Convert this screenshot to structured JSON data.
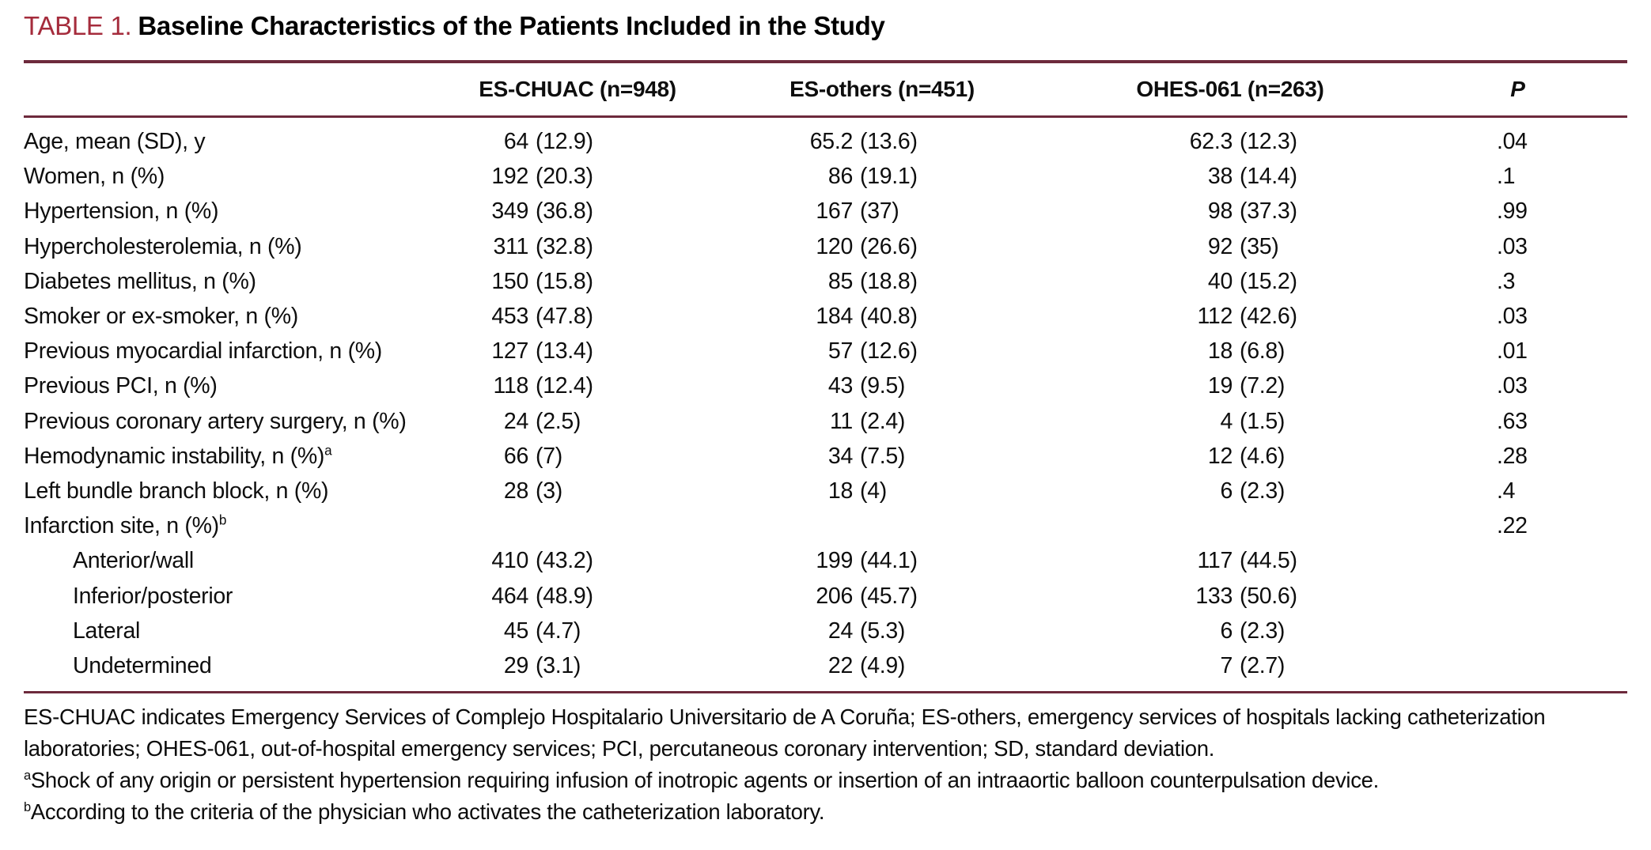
{
  "title": {
    "label": "TABLE 1.",
    "text": "Baseline Characteristics of the Patients Included in the Study"
  },
  "table": {
    "columns": [
      {
        "label": ""
      },
      {
        "label": "ES-CHUAC (n=948)"
      },
      {
        "label": "ES-others (n=451)"
      },
      {
        "label": "OHES-061 (n=263)"
      },
      {
        "label": "P",
        "italic": true
      }
    ],
    "rows": [
      {
        "label": "Age, mean (SD), y",
        "sup": "",
        "indent": false,
        "values": [
          "64 (12.9)",
          "65.2 (13.6)",
          "62.3 (12.3)"
        ],
        "p": ".04"
      },
      {
        "label": "Women, n (%)",
        "sup": "",
        "indent": false,
        "values": [
          "192 (20.3)",
          "86 (19.1)",
          "38 (14.4)"
        ],
        "p": ".1"
      },
      {
        "label": "Hypertension, n (%)",
        "sup": "",
        "indent": false,
        "values": [
          "349 (36.8)",
          "167 (37)",
          "98 (37.3)"
        ],
        "p": ".99"
      },
      {
        "label": "Hypercholesterolemia, n (%)",
        "sup": "",
        "indent": false,
        "values": [
          "311 (32.8)",
          "120 (26.6)",
          "92 (35)"
        ],
        "p": ".03"
      },
      {
        "label": "Diabetes mellitus, n (%)",
        "sup": "",
        "indent": false,
        "values": [
          "150 (15.8)",
          "85 (18.8)",
          "40 (15.2)"
        ],
        "p": ".3"
      },
      {
        "label": "Smoker or ex-smoker, n (%)",
        "sup": "",
        "indent": false,
        "values": [
          "453 (47.8)",
          "184 (40.8)",
          "112 (42.6)"
        ],
        "p": ".03"
      },
      {
        "label": "Previous myocardial infarction, n (%)",
        "sup": "",
        "indent": false,
        "values": [
          "127 (13.4)",
          "57 (12.6)",
          "18 (6.8)"
        ],
        "p": ".01"
      },
      {
        "label": "Previous PCI, n (%)",
        "sup": "",
        "indent": false,
        "values": [
          "118 (12.4)",
          "43 (9.5)",
          "19 (7.2)"
        ],
        "p": ".03"
      },
      {
        "label": "Previous coronary artery surgery, n (%)",
        "sup": "",
        "indent": false,
        "values": [
          "24 (2.5)",
          "11 (2.4)",
          "4 (1.5)"
        ],
        "p": ".63"
      },
      {
        "label": "Hemodynamic instability, n (%)",
        "sup": "a",
        "indent": false,
        "values": [
          "66 (7)",
          "34 (7.5)",
          "12 (4.6)"
        ],
        "p": ".28"
      },
      {
        "label": "Left bundle branch block, n (%)",
        "sup": "",
        "indent": false,
        "values": [
          "28 (3)",
          "18 (4)",
          "6 (2.3)"
        ],
        "p": ".4"
      },
      {
        "label": "Infarction site, n (%)",
        "sup": "b",
        "indent": false,
        "values": [
          "",
          "",
          ""
        ],
        "p": ".22"
      },
      {
        "label": "Anterior/wall",
        "sup": "",
        "indent": true,
        "values": [
          "410 (43.2)",
          "199 (44.1)",
          "117 (44.5)"
        ],
        "p": ""
      },
      {
        "label": "Inferior/posterior",
        "sup": "",
        "indent": true,
        "values": [
          "464 (48.9)",
          "206 (45.7)",
          "133 (50.6)"
        ],
        "p": ""
      },
      {
        "label": "Lateral",
        "sup": "",
        "indent": true,
        "values": [
          "45 (4.7)",
          "24 (5.3)",
          "6 (2.3)"
        ],
        "p": ""
      },
      {
        "label": "Undetermined",
        "sup": "",
        "indent": true,
        "values": [
          "29 (3.1)",
          "22 (4.9)",
          "7 (2.7)"
        ],
        "p": ""
      }
    ]
  },
  "footnotes": [
    {
      "sup": "",
      "text": "ES-CHUAC indicates Emergency Services of Complejo Hospitalario Universitario de A Coruña; ES-others, emergency services of hospitals lacking catheterization laboratories; OHES-061, out-of-hospital emergency services; PCI, percutaneous coronary intervention; SD, standard deviation."
    },
    {
      "sup": "a",
      "text": "Shock of any origin or persistent hypertension requiring infusion of inotropic agents or insertion of an intraaortic balloon counterpulsation device."
    },
    {
      "sup": "b",
      "text": "According to the criteria of the physician who activates the catheterization laboratory."
    }
  ],
  "colors": {
    "rule": "#6d2a3c",
    "title_label": "#a52c3c"
  }
}
